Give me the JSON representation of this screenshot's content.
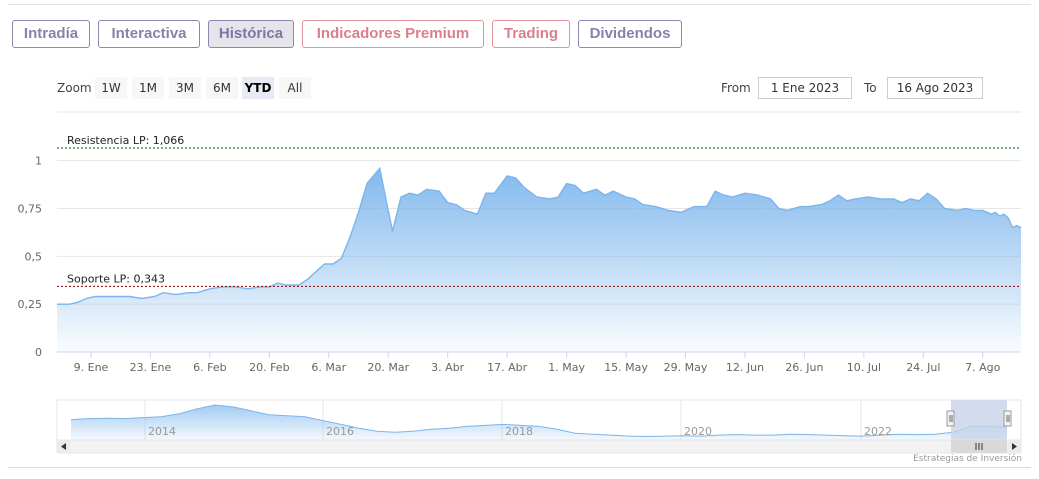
{
  "tabs": [
    {
      "label": "Intradía",
      "style": "normal"
    },
    {
      "label": "Interactiva",
      "style": "normal"
    },
    {
      "label": "Histórica",
      "style": "active"
    },
    {
      "label": "Indicadores Premium",
      "style": "premium"
    },
    {
      "label": "Trading",
      "style": "premium"
    },
    {
      "label": "Dividendos",
      "style": "normal"
    }
  ],
  "zoom": {
    "label": "Zoom",
    "buttons": [
      "1W",
      "1M",
      "3M",
      "6M",
      "YTD",
      "All"
    ],
    "selected": "YTD"
  },
  "range": {
    "from_label": "From",
    "from_value": "1 Ene 2023",
    "to_label": "To",
    "to_value": "16 Ago 2023"
  },
  "credit": "Estrategias de Inversión",
  "colors": {
    "line": "#7cb5ec",
    "support": "#8b0000",
    "resistance": "#006400",
    "navigator_mask": "#c7d3ea"
  },
  "chart_data": {
    "type": "area",
    "x_start": "2023-01-01",
    "x_end": "2023-08-16",
    "ylim": [
      0,
      1.066
    ],
    "yticks": [
      {
        "value": 0,
        "label": "0"
      },
      {
        "value": 0.25,
        "label": "0,25"
      },
      {
        "value": 0.5,
        "label": "0,5"
      },
      {
        "value": 0.75,
        "label": "0,75"
      },
      {
        "value": 1,
        "label": "1"
      }
    ],
    "xticks": [
      {
        "date": "2023-01-09",
        "label": "9. Ene"
      },
      {
        "date": "2023-01-23",
        "label": "23. Ene"
      },
      {
        "date": "2023-02-06",
        "label": "6. Feb"
      },
      {
        "date": "2023-02-20",
        "label": "20. Feb"
      },
      {
        "date": "2023-03-06",
        "label": "6. Mar"
      },
      {
        "date": "2023-03-20",
        "label": "20. Mar"
      },
      {
        "date": "2023-04-03",
        "label": "3. Abr"
      },
      {
        "date": "2023-04-17",
        "label": "17. Abr"
      },
      {
        "date": "2023-05-01",
        "label": "1. May"
      },
      {
        "date": "2023-05-15",
        "label": "15. May"
      },
      {
        "date": "2023-05-29",
        "label": "29. May"
      },
      {
        "date": "2023-06-12",
        "label": "12. Jun"
      },
      {
        "date": "2023-06-26",
        "label": "26. Jun"
      },
      {
        "date": "2023-07-10",
        "label": "10. Jul"
      },
      {
        "date": "2023-07-24",
        "label": "24. Jul"
      },
      {
        "date": "2023-08-07",
        "label": "7. Ago"
      }
    ],
    "plot_lines": [
      {
        "value": 1.066,
        "label": "Resistencia LP: 1,066",
        "kind": "resistance"
      },
      {
        "value": 0.343,
        "label": "Soporte LP: 0,343",
        "kind": "support"
      }
    ],
    "series": [
      {
        "points": [
          [
            "2023-01-01",
            0.25
          ],
          [
            "2023-01-04",
            0.25
          ],
          [
            "2023-01-06",
            0.26
          ],
          [
            "2023-01-08",
            0.28
          ],
          [
            "2023-01-10",
            0.29
          ],
          [
            "2023-01-12",
            0.29
          ],
          [
            "2023-01-15",
            0.29
          ],
          [
            "2023-01-18",
            0.29
          ],
          [
            "2023-01-21",
            0.28
          ],
          [
            "2023-01-24",
            0.29
          ],
          [
            "2023-01-26",
            0.31
          ],
          [
            "2023-01-29",
            0.3
          ],
          [
            "2023-02-01",
            0.31
          ],
          [
            "2023-02-03",
            0.31
          ],
          [
            "2023-02-06",
            0.33
          ],
          [
            "2023-02-09",
            0.34
          ],
          [
            "2023-02-12",
            0.34
          ],
          [
            "2023-02-15",
            0.33
          ],
          [
            "2023-02-18",
            0.34
          ],
          [
            "2023-02-20",
            0.34
          ],
          [
            "2023-02-22",
            0.36
          ],
          [
            "2023-02-24",
            0.35
          ],
          [
            "2023-02-27",
            0.35
          ],
          [
            "2023-03-01",
            0.38
          ],
          [
            "2023-03-03",
            0.42
          ],
          [
            "2023-03-05",
            0.46
          ],
          [
            "2023-03-07",
            0.46
          ],
          [
            "2023-03-09",
            0.49
          ],
          [
            "2023-03-11",
            0.6
          ],
          [
            "2023-03-13",
            0.73
          ],
          [
            "2023-03-15",
            0.88
          ],
          [
            "2023-03-18",
            0.96
          ],
          [
            "2023-03-21",
            0.63
          ],
          [
            "2023-03-23",
            0.81
          ],
          [
            "2023-03-25",
            0.83
          ],
          [
            "2023-03-27",
            0.82
          ],
          [
            "2023-03-29",
            0.85
          ],
          [
            "2023-04-01",
            0.84
          ],
          [
            "2023-04-03",
            0.78
          ],
          [
            "2023-04-05",
            0.77
          ],
          [
            "2023-04-07",
            0.74
          ],
          [
            "2023-04-10",
            0.72
          ],
          [
            "2023-04-12",
            0.83
          ],
          [
            "2023-04-14",
            0.83
          ],
          [
            "2023-04-17",
            0.92
          ],
          [
            "2023-04-19",
            0.91
          ],
          [
            "2023-04-21",
            0.86
          ],
          [
            "2023-04-24",
            0.81
          ],
          [
            "2023-04-27",
            0.8
          ],
          [
            "2023-04-29",
            0.81
          ],
          [
            "2023-05-01",
            0.88
          ],
          [
            "2023-05-03",
            0.87
          ],
          [
            "2023-05-05",
            0.83
          ],
          [
            "2023-05-08",
            0.85
          ],
          [
            "2023-05-10",
            0.82
          ],
          [
            "2023-05-12",
            0.84
          ],
          [
            "2023-05-15",
            0.81
          ],
          [
            "2023-05-17",
            0.8
          ],
          [
            "2023-05-19",
            0.77
          ],
          [
            "2023-05-22",
            0.76
          ],
          [
            "2023-05-25",
            0.74
          ],
          [
            "2023-05-28",
            0.73
          ],
          [
            "2023-05-31",
            0.76
          ],
          [
            "2023-06-03",
            0.76
          ],
          [
            "2023-06-05",
            0.84
          ],
          [
            "2023-06-07",
            0.82
          ],
          [
            "2023-06-09",
            0.81
          ],
          [
            "2023-06-12",
            0.83
          ],
          [
            "2023-06-15",
            0.82
          ],
          [
            "2023-06-18",
            0.8
          ],
          [
            "2023-06-20",
            0.75
          ],
          [
            "2023-06-22",
            0.74
          ],
          [
            "2023-06-25",
            0.76
          ],
          [
            "2023-06-27",
            0.76
          ],
          [
            "2023-06-30",
            0.77
          ],
          [
            "2023-07-02",
            0.79
          ],
          [
            "2023-07-04",
            0.82
          ],
          [
            "2023-07-06",
            0.79
          ],
          [
            "2023-07-08",
            0.8
          ],
          [
            "2023-07-11",
            0.81
          ],
          [
            "2023-07-14",
            0.8
          ],
          [
            "2023-07-17",
            0.8
          ],
          [
            "2023-07-19",
            0.78
          ],
          [
            "2023-07-21",
            0.8
          ],
          [
            "2023-07-23",
            0.79
          ],
          [
            "2023-07-25",
            0.83
          ],
          [
            "2023-07-27",
            0.8
          ],
          [
            "2023-07-29",
            0.75
          ],
          [
            "2023-08-01",
            0.74
          ],
          [
            "2023-08-03",
            0.75
          ],
          [
            "2023-08-05",
            0.74
          ],
          [
            "2023-08-07",
            0.74
          ],
          [
            "2023-08-08",
            0.73
          ],
          [
            "2023-08-09",
            0.72
          ],
          [
            "2023-08-10",
            0.73
          ],
          [
            "2023-08-11",
            0.71
          ],
          [
            "2023-08-12",
            0.72
          ],
          [
            "2023-08-13",
            0.7
          ],
          [
            "2023-08-14",
            0.65
          ],
          [
            "2023-08-15",
            0.66
          ],
          [
            "2023-08-16",
            0.65
          ]
        ]
      }
    ]
  },
  "navigator": {
    "xticks": [
      "2014",
      "2016",
      "2018",
      "2020",
      "2022"
    ],
    "values": [
      1.05,
      1.1,
      1.12,
      1.1,
      1.15,
      1.2,
      1.35,
      1.6,
      1.8,
      1.7,
      1.5,
      1.3,
      1.25,
      1.2,
      1.0,
      0.8,
      0.6,
      0.45,
      0.4,
      0.45,
      0.55,
      0.6,
      0.7,
      0.75,
      0.8,
      0.75,
      0.7,
      0.55,
      0.35,
      0.3,
      0.25,
      0.2,
      0.18,
      0.2,
      0.22,
      0.2,
      0.25,
      0.28,
      0.25,
      0.25,
      0.3,
      0.28,
      0.25,
      0.22,
      0.2,
      0.25,
      0.3,
      0.28,
      0.3,
      0.4,
      0.7,
      0.7,
      0.65
    ]
  }
}
